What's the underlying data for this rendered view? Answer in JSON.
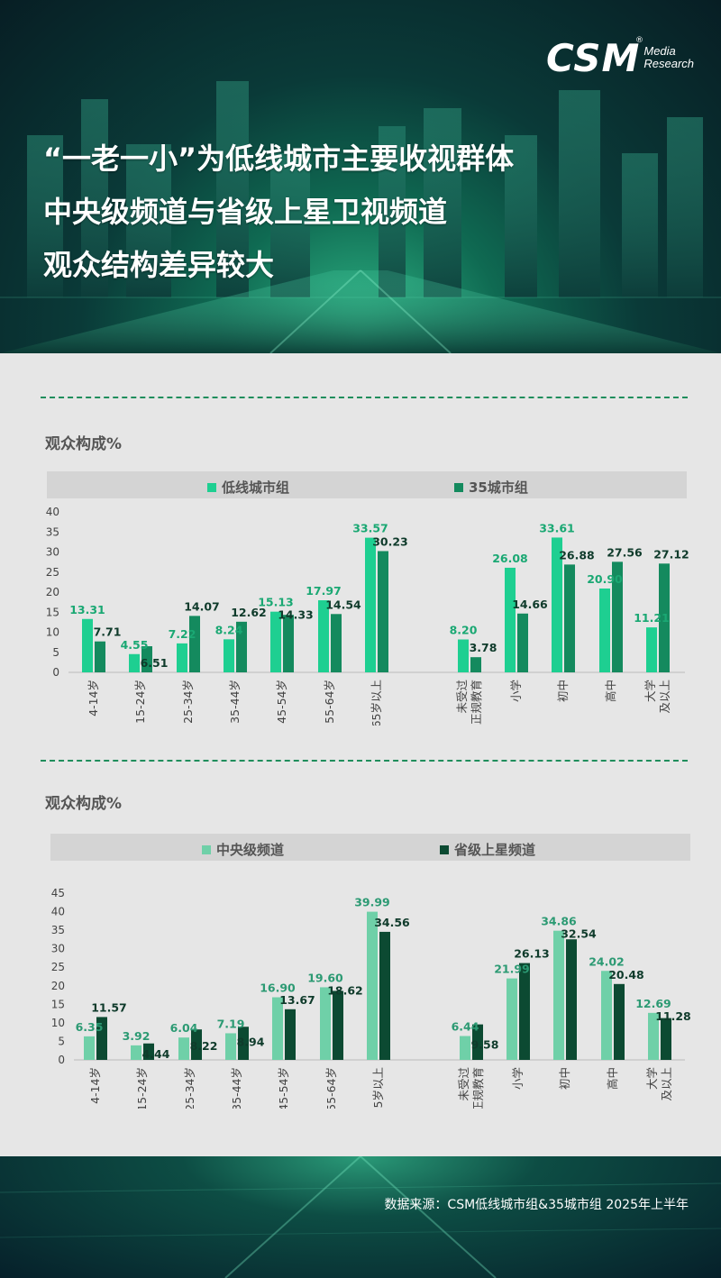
{
  "logo": {
    "main": "CSM",
    "line1": "Media",
    "line2": "Research",
    "reg": "®"
  },
  "headline": {
    "line1": "“一老一小”为低线城市主要收视群体",
    "line2": "中央级频道与省级上星卫视频道",
    "line3": "观众结构差异较大"
  },
  "colors": {
    "light_green": "#1ecf91",
    "mid_green": "#148a5e",
    "pale_green": "#6fd0a8",
    "dark_green": "#0c4a32"
  },
  "source": "数据来源：CSM低线城市组&35城市组 2025年上半年",
  "chart_data": [
    {
      "type": "bar",
      "title": "观众构成%",
      "ylim": [
        0,
        40
      ],
      "yticks": [
        0,
        5,
        10,
        15,
        20,
        25,
        30,
        35,
        40
      ],
      "categories": [
        "4-14岁",
        "15-24岁",
        "25-34岁",
        "35-44岁",
        "45-54岁",
        "55-64岁",
        "65岁以上",
        "未受过正规教育",
        "小学",
        "初中",
        "高中",
        "大学及以上"
      ],
      "category_labels": [
        [
          "4-14岁"
        ],
        [
          "15-24岁"
        ],
        [
          "25-34岁"
        ],
        [
          "35-44岁"
        ],
        [
          "45-54岁"
        ],
        [
          "55-64岁"
        ],
        [
          "65岁以上"
        ],
        [
          "未受过",
          "正规教育"
        ],
        [
          "小学"
        ],
        [
          "初中"
        ],
        [
          "高中"
        ],
        [
          "大学",
          "及以上"
        ]
      ],
      "series": [
        {
          "name": "低线城市组",
          "color": "#1ecf91",
          "values": [
            13.31,
            4.55,
            7.22,
            8.24,
            15.13,
            17.97,
            33.57,
            8.2,
            26.08,
            33.61,
            20.9,
            11.21
          ],
          "labels": [
            "13.31",
            "4.55",
            "7.22",
            "8.24",
            "15.13",
            "17.97",
            "33.57",
            "8.20",
            "26.08",
            "33.61",
            "20.90",
            "11.21"
          ]
        },
        {
          "name": "35城市组",
          "color": "#148a5e",
          "values": [
            7.71,
            6.51,
            14.07,
            12.62,
            14.33,
            14.54,
            30.23,
            3.78,
            14.66,
            26.88,
            27.56,
            27.12
          ],
          "labels": [
            "7.71",
            "6.51",
            "14.07",
            "12.62",
            "14.33",
            "14.54",
            "30.23",
            "3.78",
            "14.66",
            "26.88",
            "27.56",
            "27.12"
          ]
        }
      ]
    },
    {
      "type": "bar",
      "title": "观众构成%",
      "ylim": [
        0,
        45
      ],
      "yticks": [
        0,
        5,
        10,
        15,
        20,
        25,
        30,
        35,
        40,
        45
      ],
      "categories": [
        "4-14岁",
        "15-24岁",
        "25-34岁",
        "35-44岁",
        "45-54岁",
        "55-64岁",
        "65岁以上",
        "未受过正规教育",
        "小学",
        "初中",
        "高中",
        "大学及以上"
      ],
      "category_labels": [
        [
          "4-14岁"
        ],
        [
          "15-24岁"
        ],
        [
          "25-34岁"
        ],
        [
          "35-44岁"
        ],
        [
          "45-54岁"
        ],
        [
          "55-64岁"
        ],
        [
          "65岁以上"
        ],
        [
          "未受过",
          "正规教育"
        ],
        [
          "小学"
        ],
        [
          "初中"
        ],
        [
          "高中"
        ],
        [
          "大学",
          "及以上"
        ]
      ],
      "series": [
        {
          "name": "中央级频道",
          "color": "#6fd0a8",
          "values": [
            6.35,
            3.92,
            6.04,
            7.19,
            16.9,
            19.6,
            39.99,
            6.44,
            21.99,
            34.86,
            24.02,
            12.69
          ],
          "labels": [
            "6.35",
            "3.92",
            "6.04",
            "7.19",
            "16.90",
            "19.60",
            "39.99",
            "6.44",
            "21.99",
            "34.86",
            "24.02",
            "12.69"
          ]
        },
        {
          "name": "省级上星频道",
          "color": "#0c4a32",
          "values": [
            11.57,
            4.44,
            8.22,
            8.94,
            13.67,
            18.62,
            34.56,
            9.58,
            26.13,
            32.54,
            20.48,
            11.28
          ],
          "labels": [
            "11.57",
            "4.44",
            "8.22",
            "8.94",
            "13.67",
            "18.62",
            "34.56",
            "9.58",
            "26.13",
            "32.54",
            "20.48",
            "11.28"
          ]
        }
      ]
    }
  ]
}
